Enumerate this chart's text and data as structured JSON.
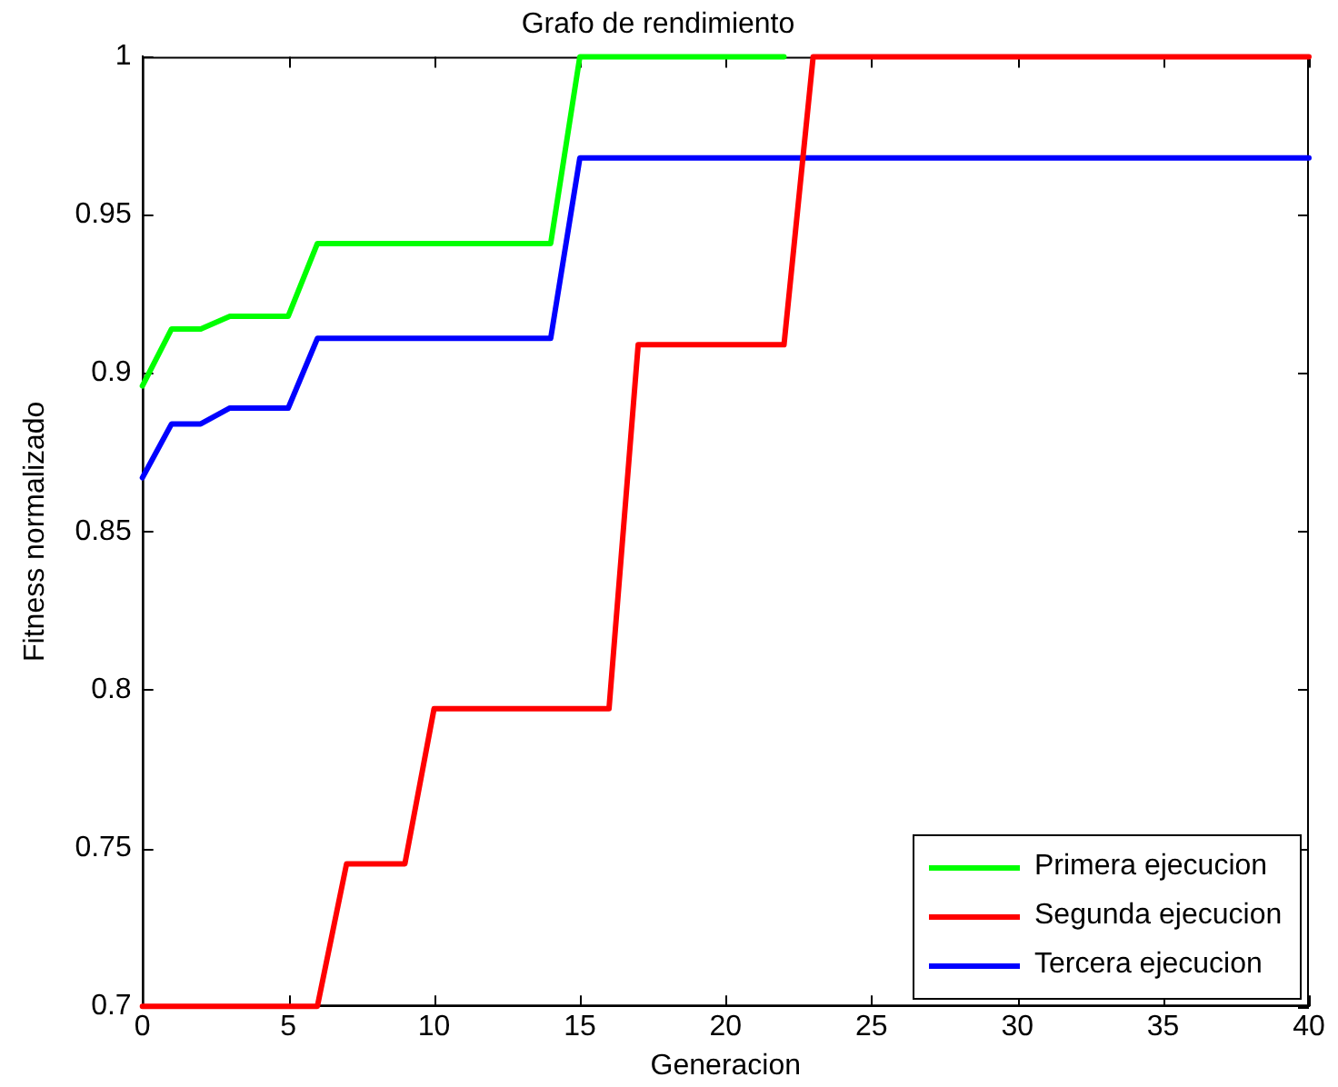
{
  "chart_data": {
    "type": "line",
    "title": "Grafo de rendimiento",
    "xlabel": "Generacion",
    "ylabel": "Fitness normalizado",
    "xlim": [
      0,
      40
    ],
    "xticks": [
      0,
      5,
      10,
      15,
      20,
      25,
      30,
      35,
      40
    ],
    "ylim": [
      0.7,
      1
    ],
    "yticks": [
      0.7,
      0.75,
      0.8,
      0.85,
      0.9,
      0.95,
      1
    ],
    "grid": false,
    "legend": "bottom right",
    "marker": "none",
    "line_style": "solid",
    "series": [
      {
        "name": "Primera ejecucion",
        "color": "#00ff00",
        "x": [
          0,
          1,
          2,
          3,
          5,
          6,
          14,
          15,
          22
        ],
        "values": [
          0.896,
          0.914,
          0.914,
          0.918,
          0.918,
          0.941,
          0.941,
          1,
          1
        ]
      },
      {
        "name": "Segunda ejecucion",
        "color": "#ff0000",
        "x": [
          0,
          6,
          7,
          9,
          10,
          16,
          17,
          22,
          23,
          40
        ],
        "values": [
          0.7,
          0.7,
          0.745,
          0.745,
          0.794,
          0.794,
          0.909,
          0.909,
          1,
          1
        ]
      },
      {
        "name": "Tercera ejecucion",
        "color": "#0000ff",
        "x": [
          0,
          1,
          2,
          3,
          5,
          6,
          14,
          15,
          40
        ],
        "values": [
          0.867,
          0.884,
          0.884,
          0.889,
          0.889,
          0.911,
          0.911,
          0.968,
          0.968
        ]
      }
    ]
  }
}
